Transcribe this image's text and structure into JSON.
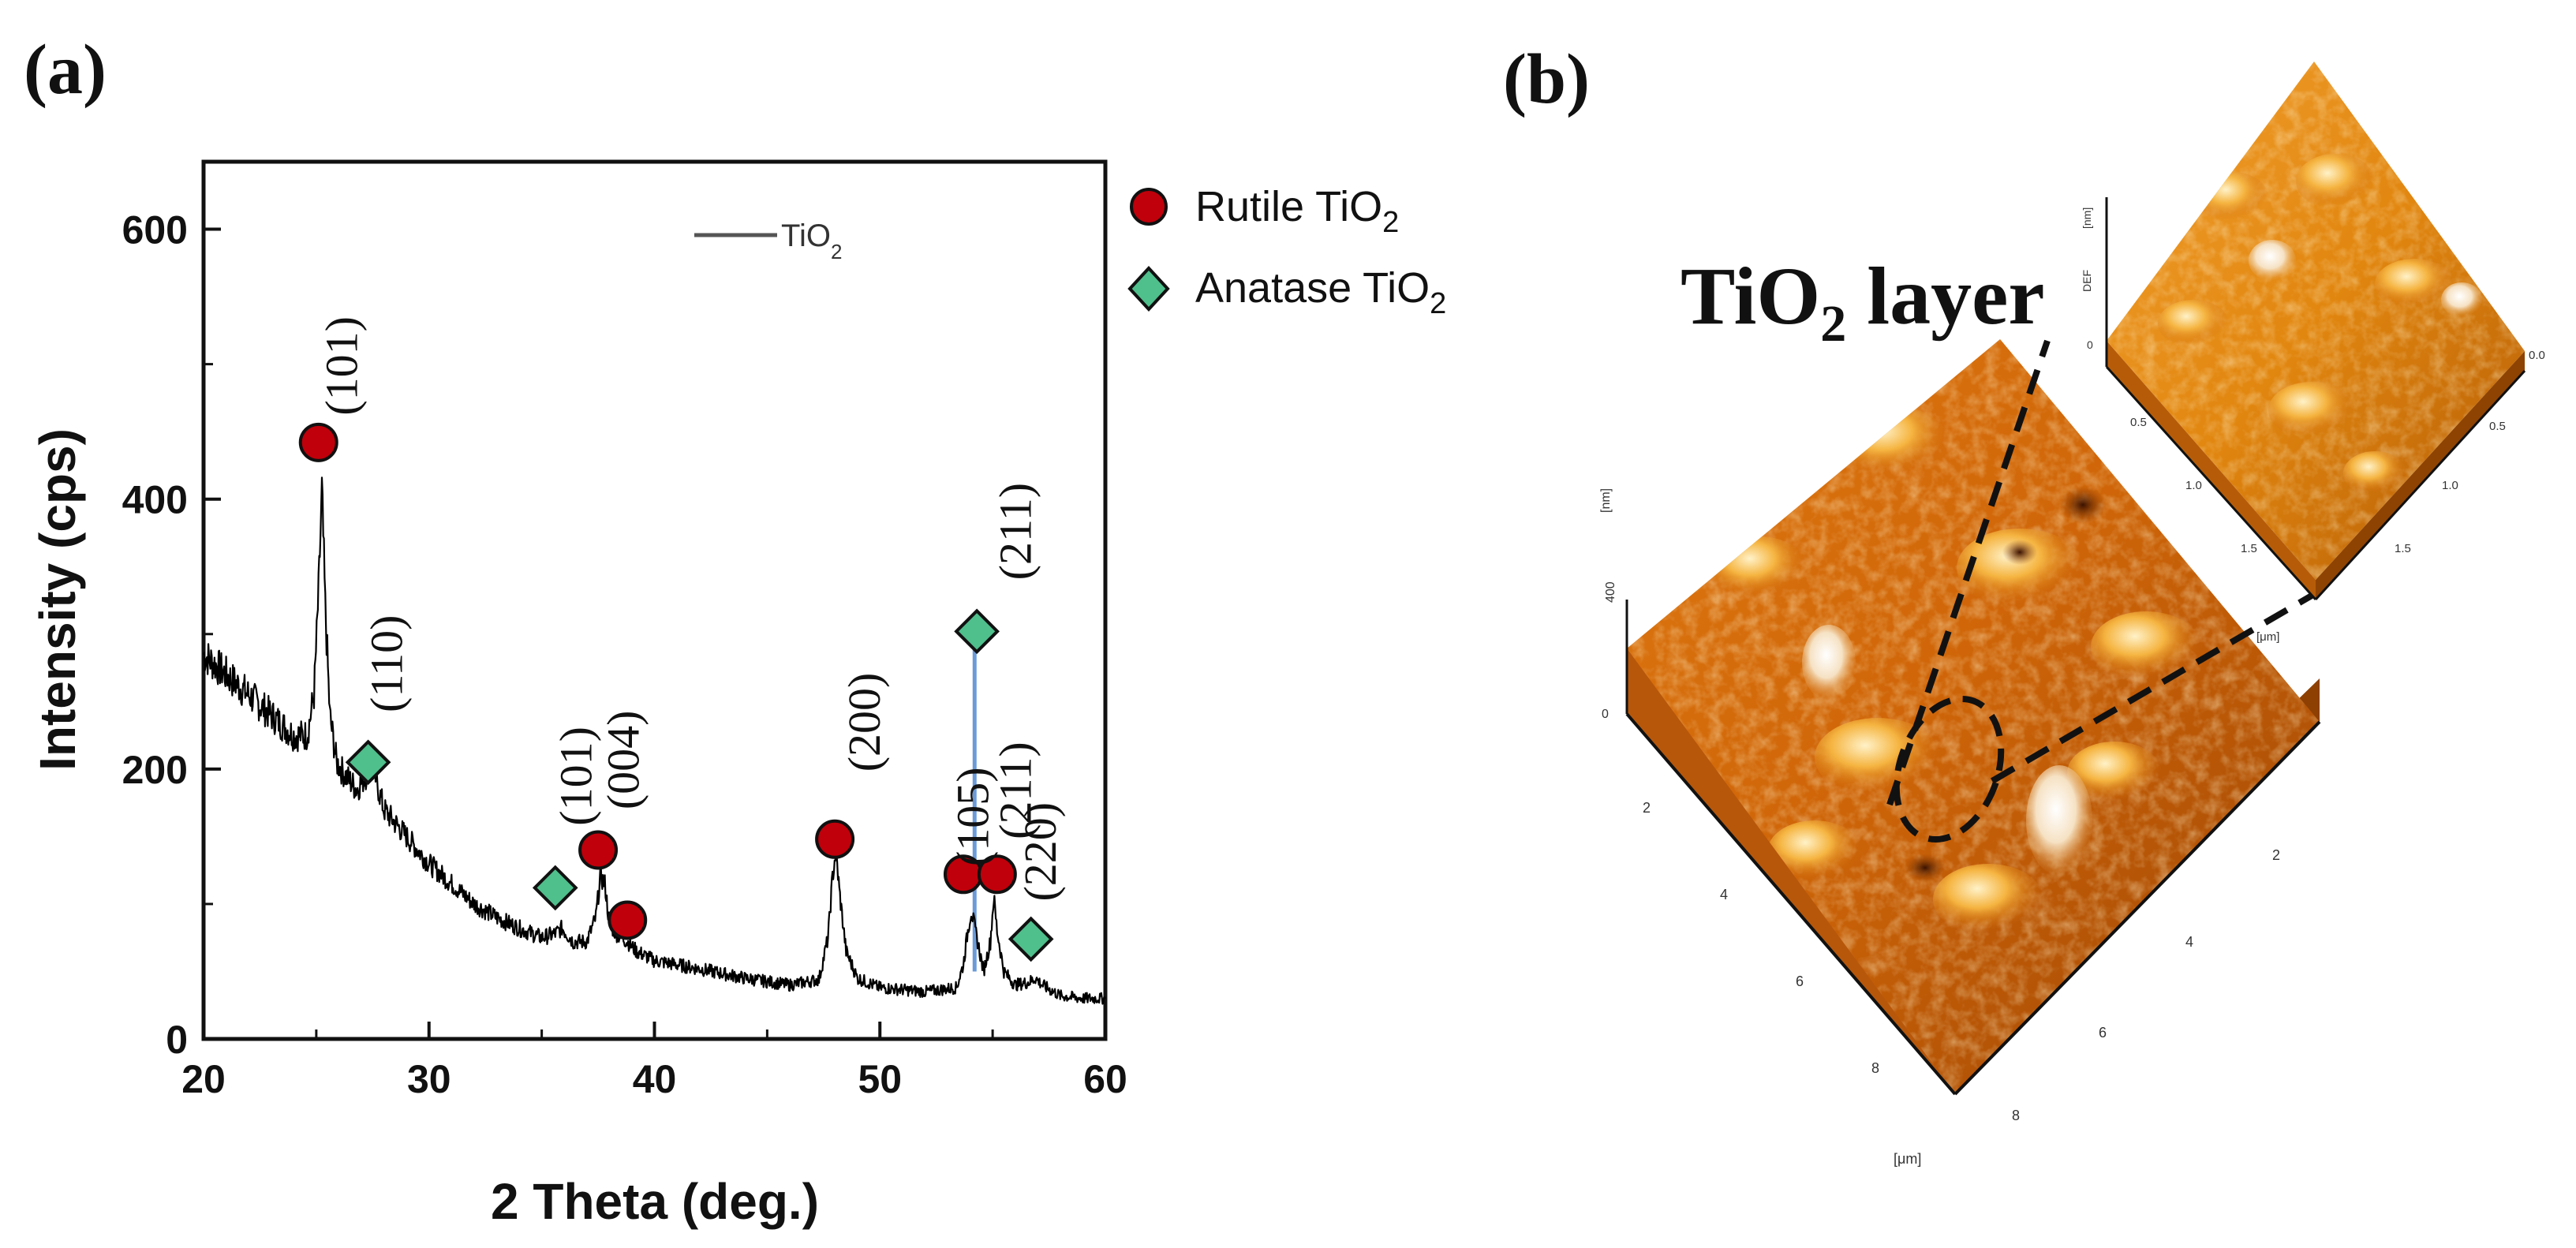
{
  "panels": {
    "a_label": "(a)",
    "b_label": "(b)"
  },
  "chart_data": {
    "type": "line",
    "title": "",
    "xlabel": "2 Theta (deg.)",
    "ylabel": "Intensity (cps)",
    "xlim": [
      20,
      60
    ],
    "ylim": [
      0,
      650
    ],
    "xticks": [
      20,
      30,
      40,
      50,
      60
    ],
    "yticks": [
      0,
      200,
      400,
      600
    ],
    "grid": false,
    "series": [
      {
        "name": "TiO2",
        "name_main": "TiO",
        "name_sub": "2",
        "color": "#000000",
        "x": [
          20.0,
          21.0,
          22.0,
          23.0,
          24.0,
          24.6,
          24.9,
          25.1,
          25.25,
          25.4,
          25.6,
          25.9,
          26.3,
          26.8,
          27.2,
          27.4,
          27.6,
          28.0,
          29.0,
          30.0,
          31.0,
          32.0,
          33.0,
          34.0,
          35.0,
          35.6,
          35.9,
          36.4,
          37.0,
          37.4,
          37.6,
          37.8,
          38.0,
          38.3,
          38.8,
          39.2,
          40.0,
          42.0,
          44.0,
          46.0,
          47.3,
          47.7,
          47.9,
          48.05,
          48.2,
          48.5,
          49.0,
          50.0,
          52.0,
          53.4,
          53.7,
          53.9,
          54.05,
          54.3,
          54.6,
          54.9,
          55.05,
          55.2,
          55.5,
          56.0,
          56.6,
          56.9,
          57.2,
          58.0,
          59.0,
          60.0
        ],
        "y": [
          285,
          270,
          255,
          240,
          225,
          225,
          255,
          330,
          405,
          320,
          240,
          205,
          195,
          185,
          195,
          210,
          195,
          170,
          150,
          130,
          115,
          100,
          90,
          82,
          75,
          78,
          82,
          72,
          72,
          90,
          120,
          115,
          85,
          78,
          72,
          65,
          58,
          52,
          45,
          40,
          44,
          75,
          120,
          140,
          110,
          65,
          45,
          38,
          35,
          38,
          55,
          80,
          95,
          75,
          50,
          72,
          105,
          80,
          50,
          40,
          42,
          45,
          40,
          32,
          30,
          30
        ]
      }
    ],
    "markers": [
      {
        "phase": "rutile",
        "x": 25.1,
        "y": 442
      },
      {
        "phase": "anatase",
        "x": 27.3,
        "y": 205
      },
      {
        "phase": "anatase",
        "x": 35.6,
        "y": 112
      },
      {
        "phase": "rutile",
        "x": 37.5,
        "y": 140
      },
      {
        "phase": "rutile",
        "x": 38.8,
        "y": 88
      },
      {
        "phase": "rutile",
        "x": 48.0,
        "y": 148
      },
      {
        "phase": "rutile",
        "x": 53.7,
        "y": 122
      },
      {
        "phase": "anatase",
        "x": 54.3,
        "y": 302
      },
      {
        "phase": "rutile",
        "x": 55.2,
        "y": 122
      },
      {
        "phase": "anatase",
        "x": 56.7,
        "y": 74
      }
    ],
    "reference_line": {
      "x": 54.2,
      "y_from": 50,
      "y_to": 300,
      "color": "#6a9ad8"
    },
    "peak_labels": [
      {
        "text": "(101)",
        "x": 26.8,
        "y": 462
      },
      {
        "text": "(110)",
        "x": 28.8,
        "y": 242
      },
      {
        "text": "(101)",
        "x": 37.2,
        "y": 158
      },
      {
        "text": "(004)",
        "x": 39.3,
        "y": 170
      },
      {
        "text": "(200)",
        "x": 50.0,
        "y": 198
      },
      {
        "text": "(105)",
        "x": 54.8,
        "y": 128
      },
      {
        "text": "(211)",
        "x": 56.7,
        "y": 340
      },
      {
        "text": "(211)",
        "x": 56.7,
        "y": 148
      },
      {
        "text": "(220)",
        "x": 57.8,
        "y": 102
      }
    ],
    "legend": {
      "placement": "right-outside",
      "entries": [
        {
          "phase": "rutile",
          "label_main": "Rutile TiO",
          "label_sub": "2",
          "color": "#c0000a",
          "marker": "circle"
        },
        {
          "phase": "anatase",
          "label_main": "Anatase TiO",
          "label_sub": "2",
          "color": "#4fbf8c",
          "marker": "diamond"
        }
      ]
    }
  },
  "afm": {
    "label_main": "TiO",
    "label_sub": "2",
    "label_rest": " layer",
    "z_unit": "[nm]",
    "z_top": "400",
    "z_zero": "0",
    "y_ticks": [
      "2",
      "4",
      "6",
      "8"
    ],
    "x_ticks": [
      "2",
      "4",
      "6",
      "8"
    ],
    "xy_unit": "[μm]",
    "inset_z_unit": "[nm]",
    "inset_z_top": "DEF",
    "inset_z_zero": "0",
    "inset_ticks_left": [
      "0.5",
      "1.0",
      "1.5"
    ],
    "inset_ticks_right": [
      "0.0",
      "0.5",
      "1.0",
      "1.5"
    ],
    "inset_xy_unit": "[μm]"
  }
}
